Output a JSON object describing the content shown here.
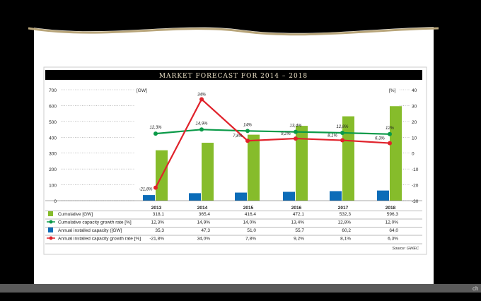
{
  "bottom_bar": {
    "text": "ch"
  },
  "chart_data": {
    "type": "bar",
    "title": "MARKET FORECAST FOR 2014 – 2018",
    "categories": [
      "2013",
      "2014",
      "2015",
      "2016",
      "2017",
      "2018"
    ],
    "left_axis": {
      "unit": "[GW]",
      "ylim": [
        0,
        700
      ],
      "ticks": [
        0,
        100,
        200,
        300,
        400,
        500,
        600,
        700
      ]
    },
    "right_axis": {
      "unit": "[%]",
      "ylim": [
        -30,
        40
      ],
      "ticks": [
        -30,
        -20,
        -10,
        0,
        10,
        20,
        30,
        40
      ]
    },
    "series": [
      {
        "name": "Cumulative [GW]",
        "type": "bar",
        "axis": "left",
        "color": "#86bc2b",
        "values": [
          318.1,
          365.4,
          416.4,
          472.1,
          532.3,
          596.3
        ],
        "table": [
          "318,1",
          "365,4",
          "416,4",
          "472,1",
          "532,3",
          "596,3"
        ]
      },
      {
        "name": "Cumulative capacity growth rate [%]",
        "type": "line",
        "axis": "right",
        "color": "#0a9a48",
        "values": [
          12.3,
          14.9,
          14.0,
          13.4,
          12.8,
          12.0
        ],
        "labels": [
          "12,3%",
          "14,9%",
          "14%",
          "13,4%",
          "12,8%",
          "12%"
        ],
        "table": [
          "12,3%",
          "14,9%",
          "14,0%",
          "13,4%",
          "12,8%",
          "12,0%"
        ]
      },
      {
        "name": "Annual installed capacity ([GW]",
        "type": "bar",
        "axis": "left",
        "color": "#0b6cb8",
        "values": [
          35.3,
          47.3,
          51.0,
          55.7,
          60.2,
          64.0
        ],
        "table": [
          "35,3",
          "47,3",
          "51,0",
          "55,7",
          "60,2",
          "64,0"
        ]
      },
      {
        "name": "Annual installed capacity growth rate [%]",
        "type": "line",
        "axis": "right",
        "color": "#e0222b",
        "values": [
          -21.8,
          34.0,
          7.8,
          9.2,
          8.1,
          6.3
        ],
        "labels": [
          "-21,8%",
          "34%",
          "7,8%",
          "9,2%",
          "8,1%",
          "6,3%"
        ],
        "table": [
          "-21,8%",
          "34,0%",
          "7,8%",
          "9,2%",
          "8,1%",
          "6,3%"
        ]
      }
    ],
    "source": "Source: GWEC"
  }
}
